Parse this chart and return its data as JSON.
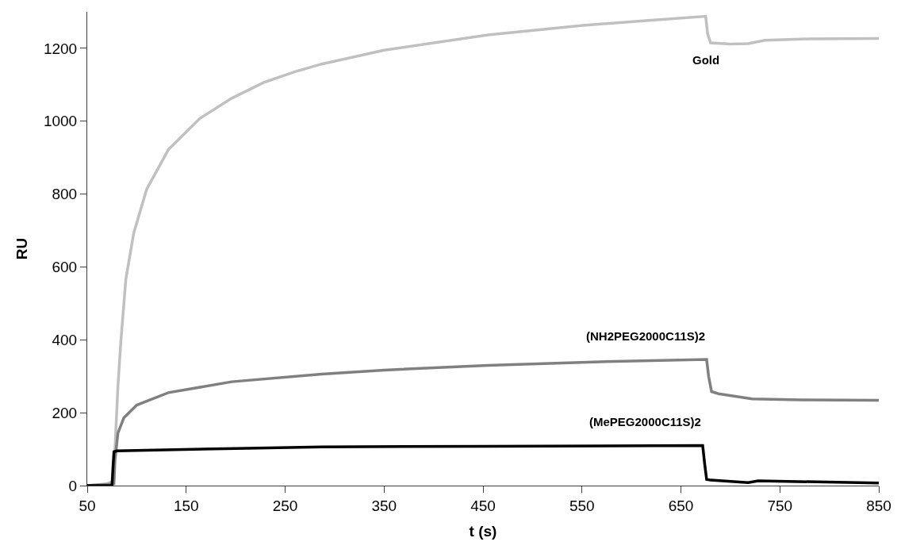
{
  "chart_data": {
    "type": "line",
    "xlabel": "t (s)",
    "ylabel": "RU",
    "xlim": [
      50,
      850
    ],
    "xticks": [
      50,
      150,
      250,
      350,
      450,
      550,
      650,
      750,
      850
    ],
    "ylim": [
      0,
      1300
    ],
    "yticks": [
      0,
      200,
      400,
      600,
      800,
      1000,
      1200
    ],
    "grid": false,
    "legend": false,
    "marker": "none",
    "line_style": "solid",
    "series": [
      {
        "name": "Gold",
        "color": "#c0c0c0",
        "x": [
          50,
          70,
          76,
          78,
          81,
          84,
          89,
          97,
          110,
          132,
          164,
          196,
          228,
          260,
          287,
          350,
          455,
          551,
          620,
          675,
          677,
          680,
          700,
          718,
          735,
          780,
          850
        ],
        "values": [
          0,
          5,
          12,
          100,
          272,
          397,
          566,
          693,
          813,
          922,
          1008,
          1063,
          1106,
          1136,
          1157,
          1195,
          1237,
          1263,
          1277,
          1288,
          1240,
          1215,
          1212,
          1213,
          1222,
          1226,
          1227
        ]
      },
      {
        "name": "(NH2PEG2000C11S)2",
        "color": "#808080",
        "x": [
          50,
          70,
          77,
          78,
          81,
          87,
          100,
          132,
          196,
          287,
          350,
          455,
          583,
          676,
          678,
          681,
          688,
          722,
          772,
          850
        ],
        "values": [
          0,
          3,
          5,
          68,
          144,
          186,
          221,
          255,
          285,
          306,
          317,
          330,
          341,
          346,
          300,
          258,
          252,
          238,
          235,
          234
        ]
      },
      {
        "name": "(MePEG2000C11S)2",
        "color": "#000000",
        "x": [
          50,
          75,
          76,
          77,
          80,
          200,
          287,
          455,
          672,
          674,
          676,
          680,
          718,
          728,
          850
        ],
        "values": [
          0,
          0,
          50,
          93,
          95,
          102,
          106,
          108,
          110,
          60,
          17,
          15,
          8,
          13,
          7
        ]
      }
    ]
  }
}
